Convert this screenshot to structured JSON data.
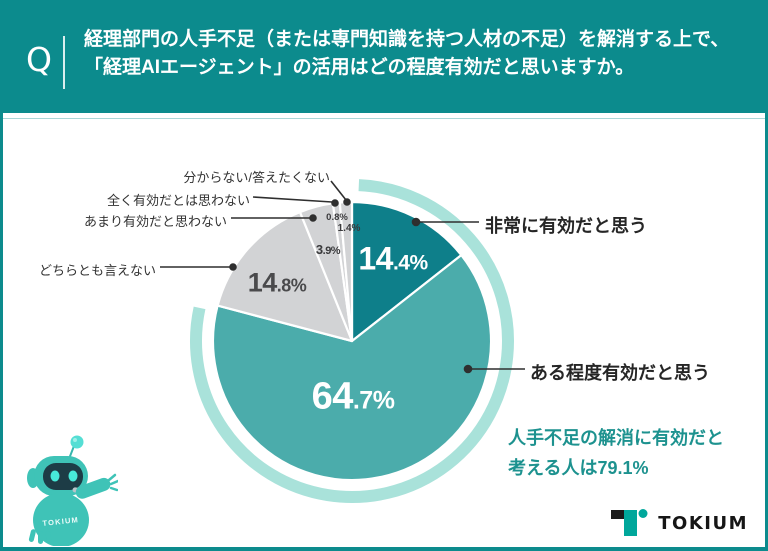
{
  "header": {
    "icon": "Q",
    "title_line1": "経理部門の人手不足（または専門知識を持つ人材の不足）を解消する上で、",
    "title_line2": "「経理AIエージェント」の活用はどの程度有効だと思いますか。"
  },
  "chart_data": {
    "type": "pie",
    "unit": "%",
    "start": "top",
    "clockwise": true,
    "labels": [
      "非常に有効だと思う",
      "ある程度有効だと思う",
      "どちらとも言えない",
      "あまり有効だと思わない",
      "全く有効だとは思わない",
      "分からない/答えたくない"
    ],
    "values": [
      14.4,
      64.7,
      14.8,
      3.9,
      0.8,
      1.4
    ],
    "slices": [
      {
        "label": "非常に有効だと思う",
        "value": 14.4,
        "color": "#0e7f8a",
        "display": {
          "int": "14",
          "frac": ".4%"
        }
      },
      {
        "label": "ある程度有効だと思う",
        "value": 64.7,
        "color": "#4bacab",
        "display": {
          "int": "64",
          "frac": ".7%"
        }
      },
      {
        "label": "どちらとも言えない",
        "value": 14.8,
        "color": "#d2d3d5",
        "display": {
          "int": "14",
          "frac": ".8%"
        }
      },
      {
        "label": "あまり有効だと思わない",
        "value": 3.9,
        "color": "#d2d3d5",
        "display": {
          "int": "3",
          "frac": ".9%"
        }
      },
      {
        "label": "全く有効だとは思わない",
        "value": 0.8,
        "color": "#d2d3d5",
        "display": {
          "int": "0",
          "frac": ".8%"
        }
      },
      {
        "label": "分からない/答えたくない",
        "value": 1.4,
        "color": "#d2d3d5",
        "display": {
          "int": "1",
          "frac": ".4%"
        }
      }
    ],
    "highlight_ring": {
      "value": 79.1,
      "color": "#a9e2da"
    }
  },
  "annotation": {
    "line1": "人手不足の解消に有効だと",
    "line2": "考える人は79.1%"
  },
  "mascot": {
    "label": "TOKIUM"
  },
  "footer": {
    "brand": "TOKIUM"
  },
  "colors": {
    "header": "#0c8b8d",
    "accent_dark": "#0e7f8a",
    "accent": "#4bacab",
    "muted": "#d2d3d5",
    "ring": "#a9e2da",
    "annotation_text": "#1d928f"
  }
}
